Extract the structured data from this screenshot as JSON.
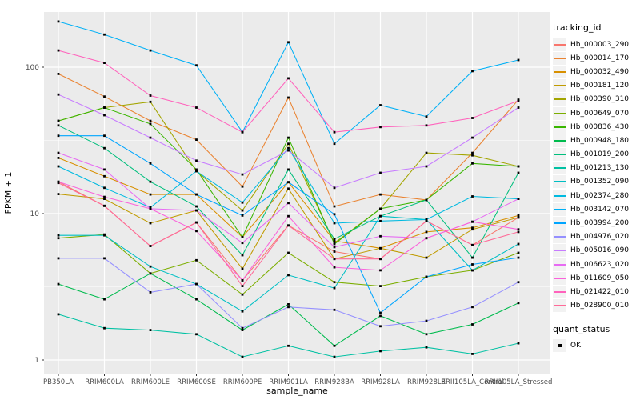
{
  "chart_data": {
    "type": "line",
    "title": "",
    "xlabel": "sample_name",
    "ylabel": "FPKM + 1",
    "y_scale": "log10",
    "y_ticks": [
      1,
      10,
      100
    ],
    "ylim": [
      1,
      260
    ],
    "grid": "major-and-minor",
    "legend_position": "right",
    "categories": [
      "PB350LA",
      "RRIM600LA",
      "RRIM600LE",
      "RRIM600SE",
      "RRIM600PE",
      "RRIM901LA",
      "RRIM928BA",
      "RRIM928LA",
      "RRIM928LE",
      "RRII105LA_Control",
      "RRII105LA_Stressed"
    ],
    "series": [
      {
        "name": "Hb_000003_290",
        "color": "#F8766D",
        "values": [
          16.5,
          11.3,
          6.0,
          8.7,
          3.5,
          8.3,
          5.5,
          4.9,
          8.9,
          6.1,
          9.4
        ]
      },
      {
        "name": "Hb_000014_170",
        "color": "#EA8331",
        "values": [
          90,
          63,
          43,
          32,
          15.3,
          62,
          11.2,
          13.5,
          12.4,
          26,
          60
        ]
      },
      {
        "name": "Hb_000032_490",
        "color": "#D89000",
        "values": [
          24,
          18,
          13.5,
          13.5,
          6.9,
          16.4,
          6.5,
          5.8,
          7.5,
          8.0,
          9.7
        ]
      },
      {
        "name": "Hb_000181_120",
        "color": "#C09B00",
        "values": [
          13.6,
          12.6,
          8.6,
          10.5,
          4.2,
          14.8,
          4.9,
          5.8,
          5.0,
          7.8,
          9.4
        ]
      },
      {
        "name": "Hb_000390_310",
        "color": "#A3A500",
        "values": [
          43,
          53,
          58,
          19.5,
          10.5,
          30,
          6.3,
          10.8,
          26,
          25,
          21
        ]
      },
      {
        "name": "Hb_000649_070",
        "color": "#7CAE00",
        "values": [
          6.8,
          7.2,
          3.9,
          4.8,
          2.8,
          5.4,
          3.4,
          3.2,
          3.7,
          4.1,
          5.4
        ]
      },
      {
        "name": "Hb_000836_430",
        "color": "#39B600",
        "values": [
          43,
          53,
          41,
          20,
          6.9,
          33,
          6.2,
          10.8,
          12.4,
          22,
          21
        ]
      },
      {
        "name": "Hb_000948_180",
        "color": "#00BB4E",
        "values": [
          3.3,
          2.6,
          3.9,
          2.6,
          1.6,
          2.4,
          1.25,
          2.0,
          1.5,
          1.75,
          2.45
        ]
      },
      {
        "name": "Hb_001019_200",
        "color": "#00BF7D",
        "values": [
          40,
          28,
          16.5,
          11.2,
          5.2,
          20,
          6.7,
          9.6,
          12.4,
          5.0,
          19
        ]
      },
      {
        "name": "Hb_001213_130",
        "color": "#00C1A3",
        "values": [
          2.05,
          1.65,
          1.6,
          1.5,
          1.05,
          1.25,
          1.05,
          1.15,
          1.22,
          1.1,
          1.3
        ]
      },
      {
        "name": "Hb_001352_090",
        "color": "#00BFC4",
        "values": [
          7.1,
          7.1,
          4.35,
          3.3,
          2.15,
          3.8,
          3.1,
          9.6,
          9.1,
          4.1,
          6.2
        ]
      },
      {
        "name": "Hb_002374_280",
        "color": "#00BAE0",
        "values": [
          21,
          15,
          11,
          19.5,
          11.9,
          28,
          8.6,
          8.9,
          9.1,
          13.1,
          12.6
        ]
      },
      {
        "name": "Hb_003142_070",
        "color": "#00B0F6",
        "values": [
          205,
          167,
          130,
          103,
          36,
          148,
          30,
          55,
          46,
          94,
          112
        ]
      },
      {
        "name": "Hb_003994_200",
        "color": "#00A5FF",
        "values": [
          34,
          34,
          22,
          13.5,
          9.7,
          16.4,
          9.9,
          2.1,
          3.7,
          4.5,
          5.0
        ]
      },
      {
        "name": "Hb_004976_020",
        "color": "#9590FF",
        "values": [
          4.95,
          4.95,
          2.9,
          3.3,
          1.65,
          2.3,
          2.2,
          1.7,
          1.85,
          2.3,
          3.4
        ]
      },
      {
        "name": "Hb_005016_090",
        "color": "#C77CFF",
        "values": [
          65,
          47,
          33,
          23,
          18.5,
          27,
          15,
          19,
          21,
          33,
          53
        ]
      },
      {
        "name": "Hb_006623_020",
        "color": "#E76BF3",
        "values": [
          26,
          20,
          10.8,
          10.5,
          6.3,
          11.8,
          5.9,
          7.0,
          6.8,
          8.8,
          12.6
        ]
      },
      {
        "name": "Hb_011609_050",
        "color": "#FA62DB",
        "values": [
          16.5,
          13,
          10.8,
          7.6,
          3.5,
          9.6,
          4.3,
          4.1,
          6.8,
          8.8,
          7.8
        ]
      },
      {
        "name": "Hb_021422_010",
        "color": "#FF62BC",
        "values": [
          130,
          107,
          64,
          53,
          36,
          84,
          36,
          39,
          40,
          45,
          59
        ]
      },
      {
        "name": "Hb_028900_010",
        "color": "#FF6A98",
        "values": [
          16.2,
          11.3,
          6.0,
          8.7,
          3.2,
          8.3,
          4.9,
          4.9,
          8.9,
          6.1,
          7.5
        ]
      }
    ],
    "marker": {
      "shape": "square",
      "color": "#000000"
    }
  },
  "legend": {
    "tracking_title": "tracking_id",
    "quant_title": "quant_status",
    "quant_items": [
      {
        "label": "OK"
      }
    ]
  },
  "colors": {
    "panel_bg": "#EBEBEB",
    "grid": "#FFFFFF",
    "tick_text": "#4D4D4D",
    "axis_title": "#000000",
    "key_bg": "#F2F2F2"
  }
}
